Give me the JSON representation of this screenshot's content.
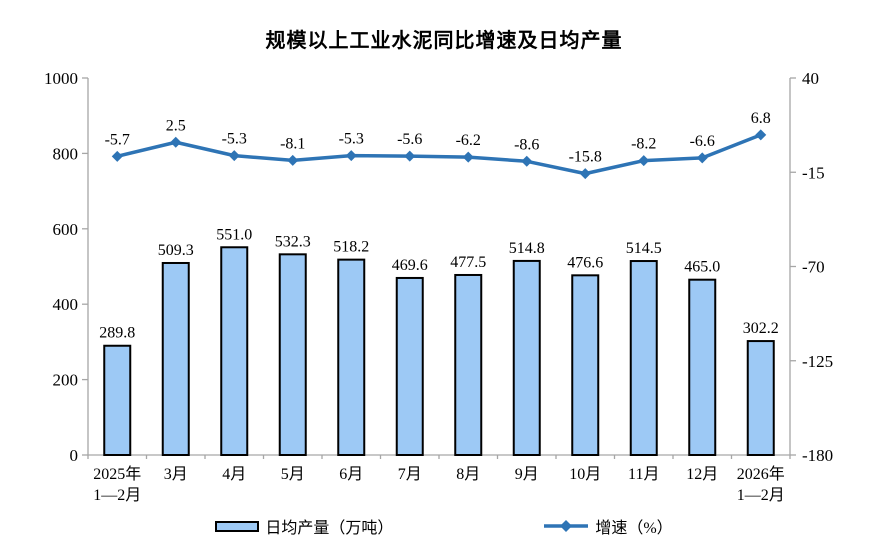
{
  "title": "规模以上工业水泥同比增速及日均产量",
  "chart_data": {
    "type": "combo-bar-line",
    "title": "规模以上工业水泥同比增速及日均产量",
    "categories": [
      [
        "2025年",
        "1—2月"
      ],
      [
        "3月"
      ],
      [
        "4月"
      ],
      [
        "5月"
      ],
      [
        "6月"
      ],
      [
        "7月"
      ],
      [
        "8月"
      ],
      [
        "9月"
      ],
      [
        "10月"
      ],
      [
        "11月"
      ],
      [
        "12月"
      ],
      [
        "2026年",
        "1—2月"
      ]
    ],
    "series": [
      {
        "name": "日均产量（万吨）",
        "type": "bar",
        "axis": "left",
        "values": [
          289.8,
          509.3,
          551.0,
          532.3,
          518.2,
          469.6,
          477.5,
          514.8,
          476.6,
          514.5,
          465.0,
          302.2
        ]
      },
      {
        "name": "增速（%）",
        "type": "line",
        "axis": "right",
        "values": [
          -5.7,
          2.5,
          -5.3,
          -8.1,
          -5.3,
          -5.6,
          -6.2,
          -8.6,
          -15.8,
          -8.2,
          -6.6,
          6.8
        ]
      }
    ],
    "left_axis": {
      "min": 0,
      "max": 1000,
      "ticks": [
        0,
        200,
        400,
        600,
        800,
        1000
      ]
    },
    "right_axis": {
      "min": -180,
      "max": 40,
      "ticks": [
        40,
        -15,
        -70,
        -125,
        -180
      ]
    },
    "grid": false,
    "legend_position": "bottom",
    "colors": {
      "bar_fill": "#9DC9F5",
      "bar_border": "#000000",
      "line": "#2E74B5",
      "axis": "#A6A6A6",
      "text": "#000000"
    }
  }
}
